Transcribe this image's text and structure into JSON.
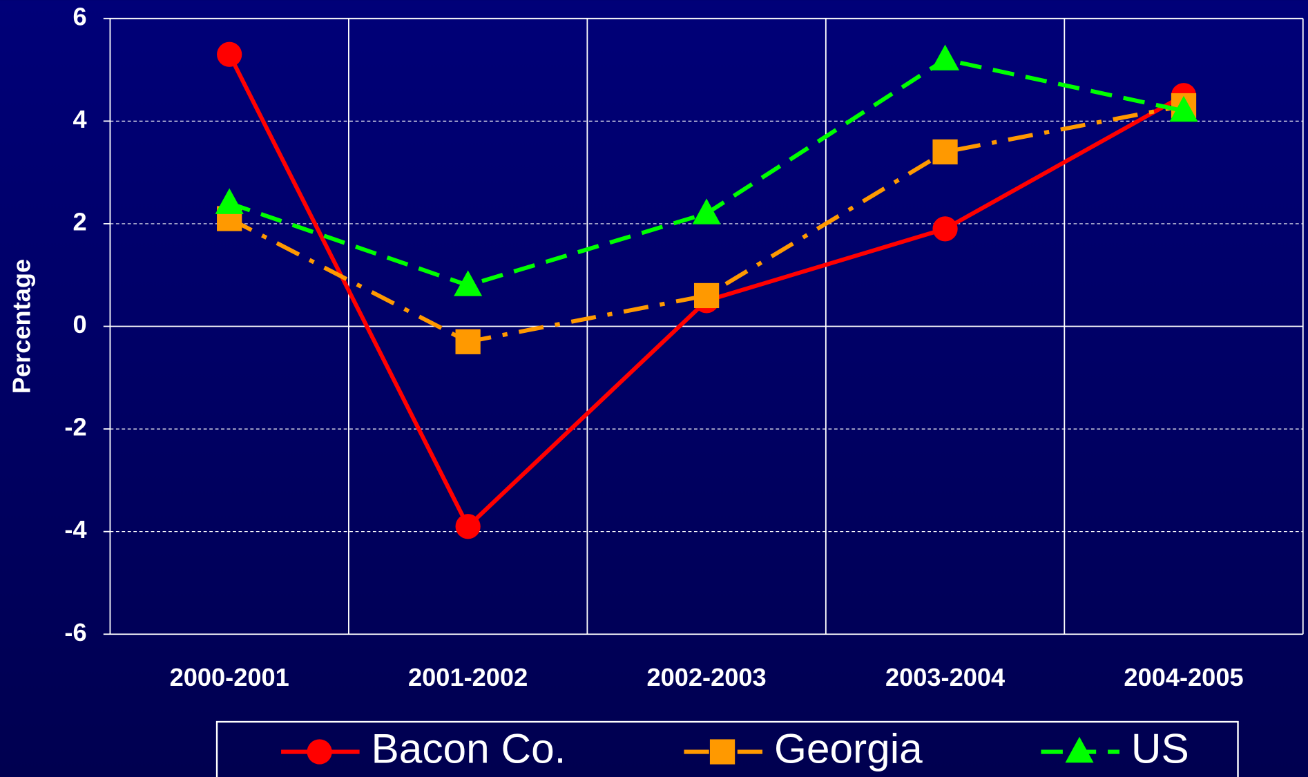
{
  "chart_data": {
    "type": "line",
    "y_label": "Percentage",
    "categories": [
      "2000-2001",
      "2001-2002",
      "2002-2003",
      "2003-2004",
      "2004-2005"
    ],
    "series": [
      {
        "name": "Bacon Co.",
        "color": "#ff0000",
        "dash": "solid",
        "marker": "circle",
        "values": [
          5.3,
          -3.9,
          0.5,
          1.9,
          4.5
        ]
      },
      {
        "name": "Georgia",
        "color": "#ff9900",
        "dash": "dashdot",
        "marker": "square",
        "values": [
          2.1,
          -0.3,
          0.6,
          3.4,
          4.3
        ]
      },
      {
        "name": "US",
        "color": "#00ff00",
        "dash": "dashed",
        "marker": "triangle",
        "values": [
          2.4,
          0.8,
          2.2,
          5.2,
          4.2
        ]
      }
    ],
    "ylim": [
      -6,
      6
    ],
    "yticks": [
      -6,
      -4,
      -2,
      0,
      2,
      4,
      6
    ],
    "grid": true,
    "legend": "bottom"
  }
}
